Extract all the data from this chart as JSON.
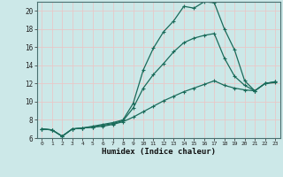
{
  "xlabel": "Humidex (Indice chaleur)",
  "bg_color": "#cce8e8",
  "grid_color": "#e8c8c8",
  "line_color": "#1a6b5a",
  "xlim": [
    -0.5,
    23.5
  ],
  "ylim": [
    6,
    21
  ],
  "yticks": [
    6,
    8,
    10,
    12,
    14,
    16,
    18,
    20
  ],
  "xticks": [
    0,
    1,
    2,
    3,
    4,
    5,
    6,
    7,
    8,
    9,
    10,
    11,
    12,
    13,
    14,
    15,
    16,
    17,
    18,
    19,
    20,
    21,
    22,
    23
  ],
  "series1_x": [
    0,
    1,
    2,
    3,
    4,
    5,
    6,
    7,
    8,
    9,
    10,
    11,
    12,
    13,
    14,
    15,
    16,
    17,
    18,
    19,
    20,
    21,
    22,
    23
  ],
  "series1_y": [
    7.0,
    6.9,
    6.2,
    7.0,
    7.1,
    7.3,
    7.5,
    7.7,
    8.0,
    9.8,
    13.5,
    15.9,
    17.7,
    18.9,
    20.5,
    20.3,
    21.0,
    20.9,
    18.0,
    15.7,
    12.3,
    11.2,
    12.0,
    12.2
  ],
  "series2_x": [
    0,
    1,
    2,
    3,
    4,
    5,
    6,
    7,
    8,
    9,
    10,
    11,
    12,
    13,
    14,
    15,
    16,
    17,
    18,
    19,
    20,
    21,
    22,
    23
  ],
  "series2_y": [
    7.0,
    6.9,
    6.2,
    7.0,
    7.1,
    7.2,
    7.4,
    7.6,
    7.9,
    9.3,
    11.5,
    13.0,
    14.2,
    15.5,
    16.5,
    17.0,
    17.3,
    17.5,
    14.8,
    12.8,
    11.8,
    11.2,
    12.0,
    12.2
  ],
  "series3_x": [
    0,
    1,
    2,
    3,
    4,
    5,
    6,
    7,
    8,
    9,
    10,
    11,
    12,
    13,
    14,
    15,
    16,
    17,
    18,
    19,
    20,
    21,
    22,
    23
  ],
  "series3_y": [
    7.0,
    6.9,
    6.2,
    7.0,
    7.1,
    7.2,
    7.3,
    7.5,
    7.8,
    8.3,
    8.9,
    9.5,
    10.1,
    10.6,
    11.1,
    11.5,
    11.9,
    12.3,
    11.8,
    11.5,
    11.3,
    11.2,
    12.0,
    12.1
  ]
}
